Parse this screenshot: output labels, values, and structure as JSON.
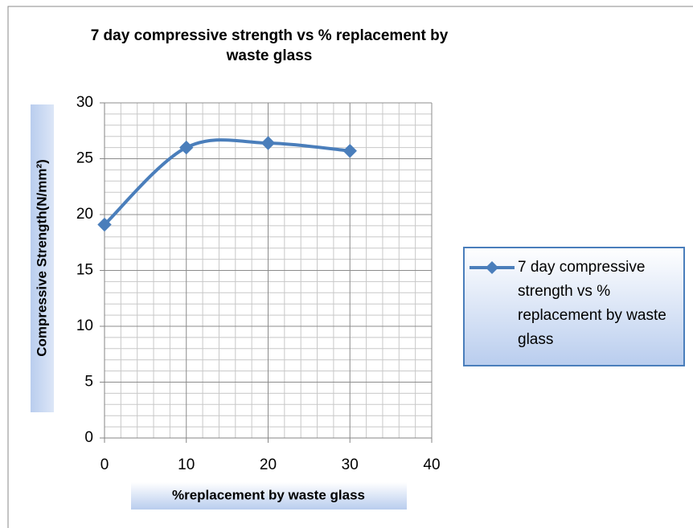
{
  "chart_data": {
    "type": "line",
    "title": "7 day compressive strength vs % replacement by waste glass",
    "x_label": "%replacement by waste glass",
    "y_label": "Compressive Strength(N/mm²)",
    "x": [
      0,
      10,
      20,
      30
    ],
    "series": [
      {
        "name": "7 day compressive strength vs % replacement by waste glass",
        "color": "#4a7ebb",
        "values": [
          19.1,
          26,
          26.4,
          25.7
        ]
      }
    ],
    "xlim": [
      0,
      40
    ],
    "xticks": [
      0,
      10,
      20,
      30,
      40
    ],
    "ylim": [
      0,
      30
    ],
    "yticks": [
      0,
      5,
      10,
      15,
      20,
      25,
      30
    ],
    "grid": true,
    "minor_grid": true,
    "smooth": true,
    "legend": "right"
  }
}
